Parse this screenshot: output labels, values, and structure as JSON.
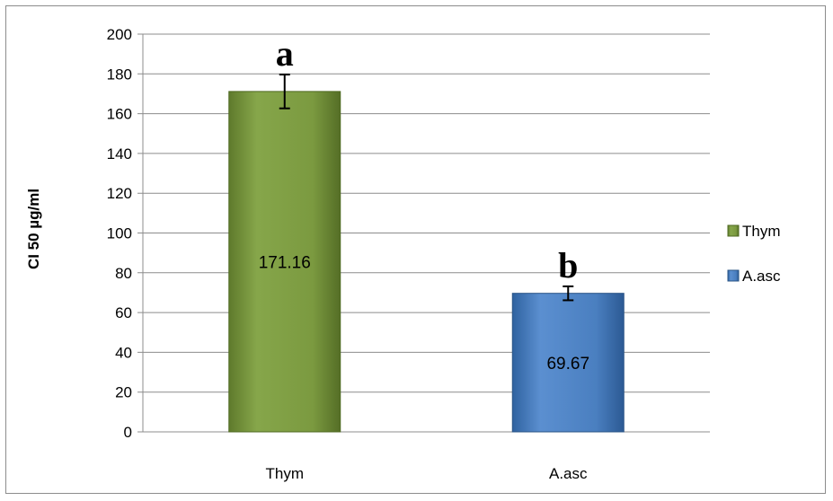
{
  "chart_data": {
    "type": "bar",
    "categories": [
      "Thym",
      "A.asc"
    ],
    "values": [
      171.16,
      69.67
    ],
    "value_labels": [
      "171.16",
      "69.67"
    ],
    "error": [
      8.5,
      3.5
    ],
    "significance_letters": [
      "a",
      "b"
    ],
    "ylabel": "CI 50 µg/ml",
    "ylim": [
      0,
      200
    ],
    "yticks": [
      0,
      20,
      40,
      60,
      80,
      100,
      120,
      140,
      160,
      180,
      200
    ],
    "grid": true,
    "legend": {
      "position": "right",
      "entries": [
        {
          "name": "Thym",
          "color": "#77933c"
        },
        {
          "name": "A.asc",
          "color": "#4f81bd"
        }
      ]
    },
    "colors": [
      "#77933c",
      "#4f81bd"
    ]
  }
}
